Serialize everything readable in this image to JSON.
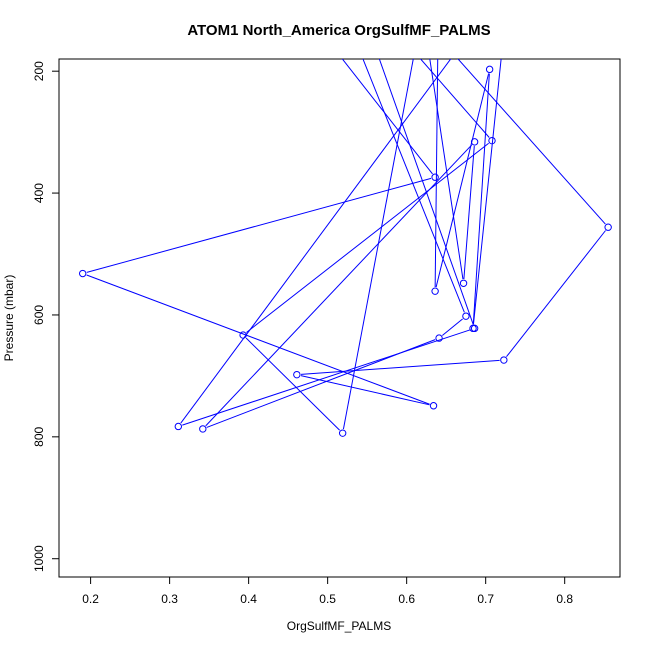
{
  "chart_data": {
    "type": "line",
    "title": "ATOM1 North_America OrgSulfMF_PALMS",
    "xlabel": "OrgSulfMF_PALMS",
    "ylabel": "Pressure (mbar)",
    "xlim": [
      0.16,
      0.87
    ],
    "ylim": [
      1030,
      180
    ],
    "y_reversed": true,
    "x_ticks": [
      0.2,
      0.3,
      0.4,
      0.5,
      0.6,
      0.7,
      0.8
    ],
    "x_tick_labels": [
      "0.2",
      "0.3",
      "0.4",
      "0.5",
      "0.6",
      "0.7",
      "0.8"
    ],
    "y_ticks": [
      200,
      400,
      600,
      800,
      1000
    ],
    "y_tick_labels": [
      "200",
      "400",
      "600",
      "800",
      "1000"
    ],
    "grid": false,
    "legend": "none",
    "series": [
      {
        "color": "#0000ff",
        "marker": "open-circle",
        "x": [
          0.44,
          0.636,
          0.19,
          0.634,
          0.461,
          0.723,
          0.855,
          0.61,
          0.64,
          0.636,
          0.705,
          0.684,
          0.73,
          0.311,
          0.686,
          0.53,
          0.708,
          0.393,
          0.519,
          0.62,
          0.672,
          0.686,
          0.342,
          0.641,
          0.675,
          0.52
        ],
        "y": [
          50,
          374,
          532,
          749,
          698,
          674,
          456,
          100,
          100,
          561,
          197,
          622,
          50,
          783,
          622,
          50,
          314,
          633,
          794,
          100,
          548,
          316,
          787,
          638,
          602,
          100
        ]
      }
    ]
  }
}
